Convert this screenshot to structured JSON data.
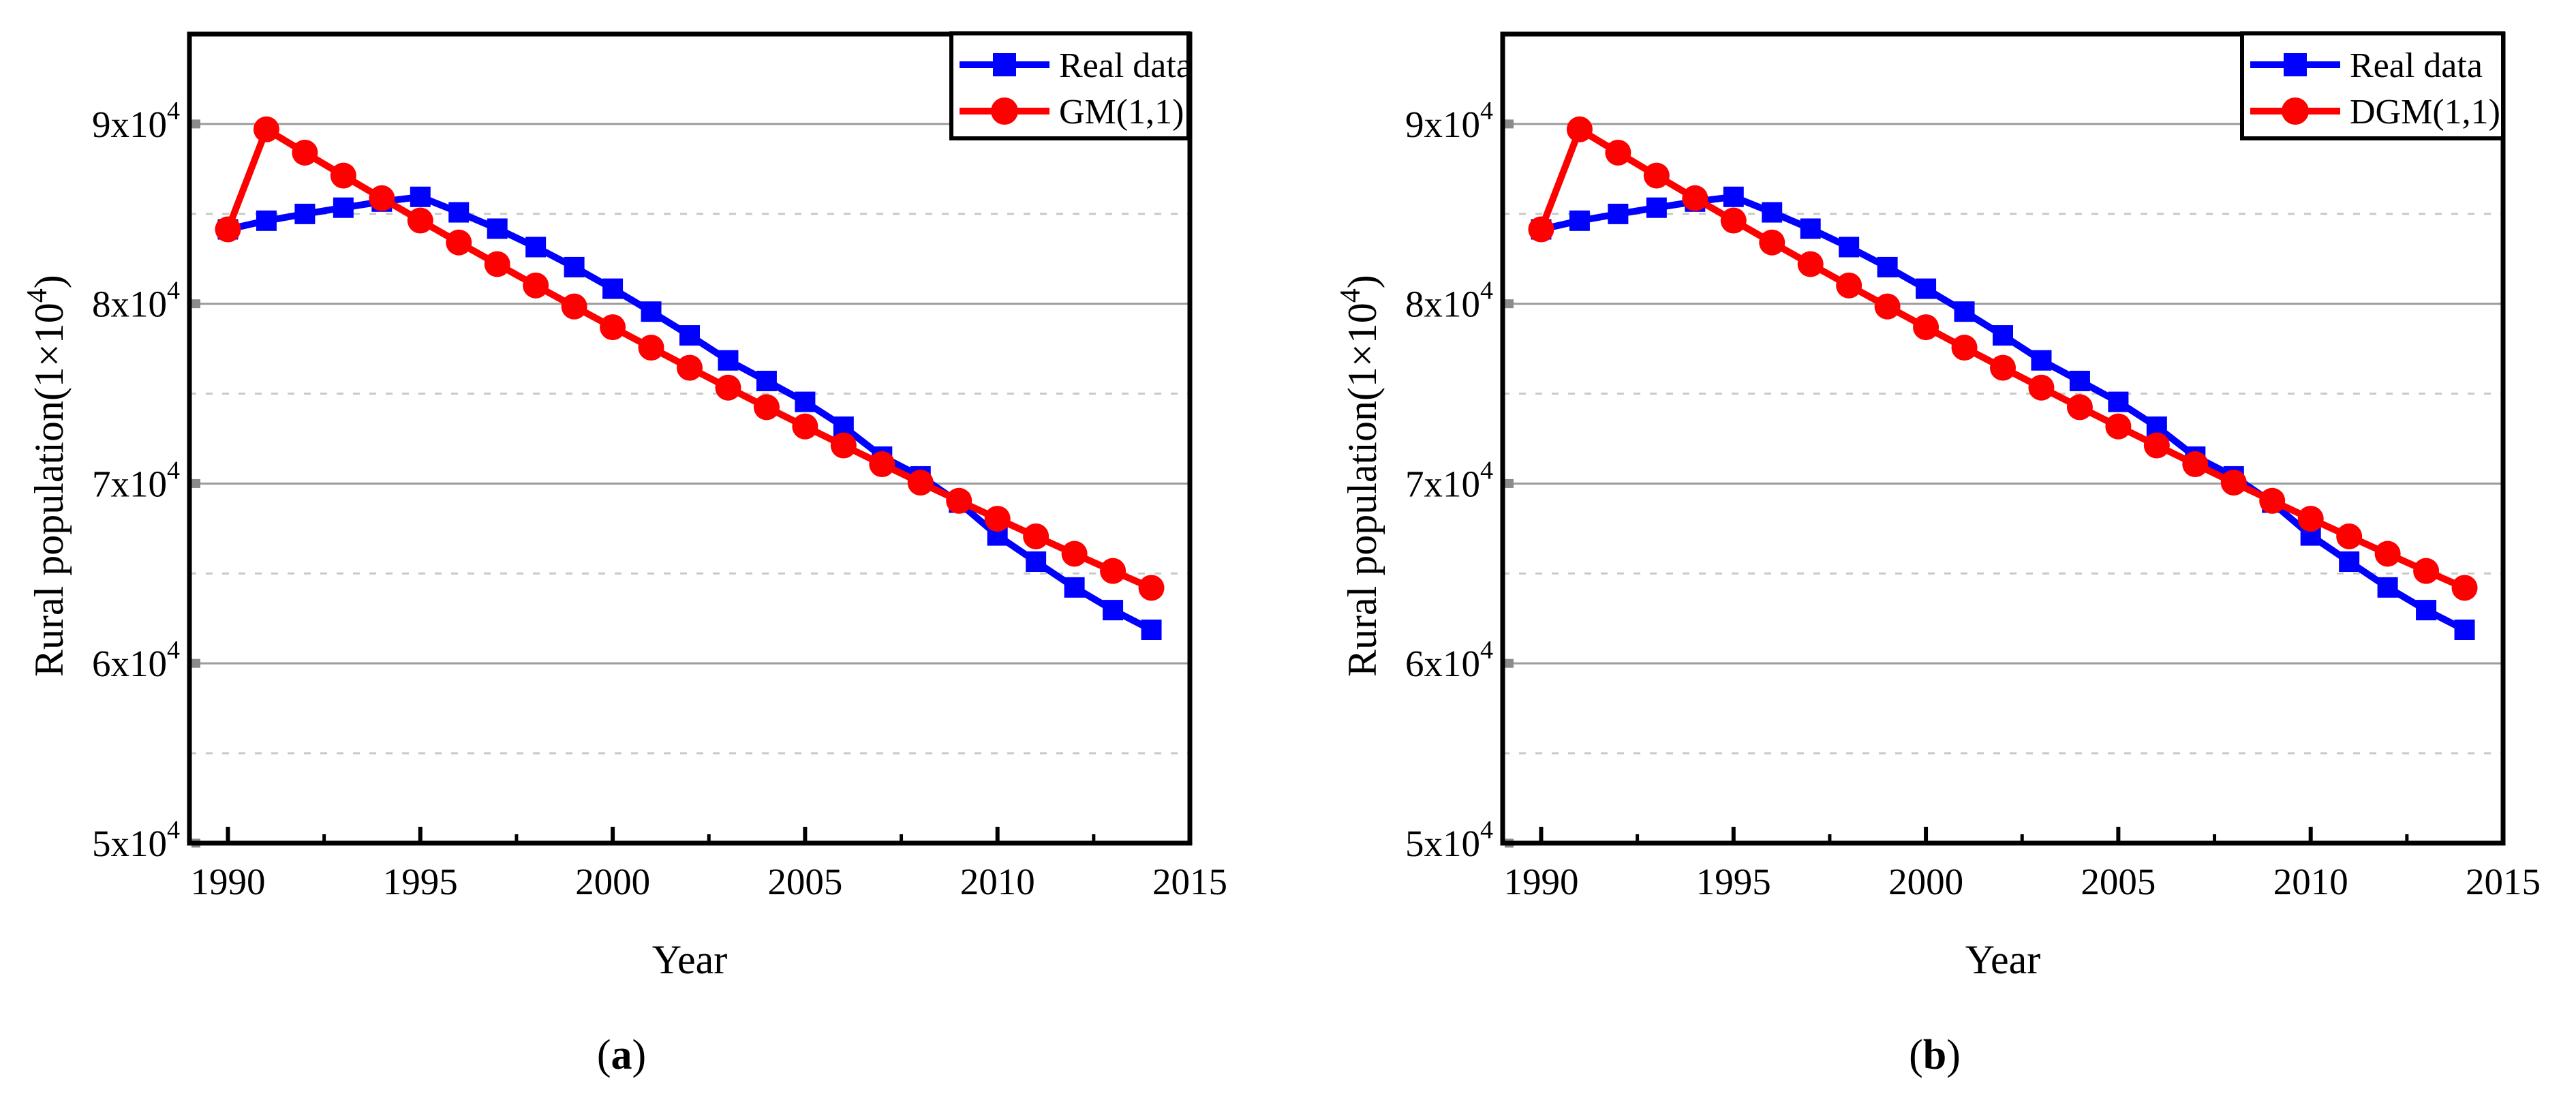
{
  "figure": {
    "xlabel": "Year",
    "ylabel": {
      "main": "Rural population(1×10",
      "sup": "4",
      "close": ")"
    },
    "captions": {
      "open": "(",
      "a": "a",
      "b": "b",
      "close": ")"
    }
  },
  "style": {
    "background": "#ffffff",
    "blue": "#0000fe",
    "red": "#fe0000",
    "frame": "#000000",
    "major_grid": "#9c9c9c",
    "minor_grid": "#c9c9c9",
    "grid_cap": "#8b8b8b",
    "tick": "#000000"
  },
  "axes": {
    "x": {
      "min": 1989,
      "max": 2015,
      "major_ticks": [
        1990,
        1995,
        2000,
        2005,
        2010,
        2015
      ],
      "minor_ticks": [
        1992.5,
        1997.5,
        2002.5,
        2007.5,
        2012.5
      ]
    },
    "y": {
      "min": 50000,
      "max": 95000,
      "major_gridlines": [
        90000,
        80000,
        70000,
        60000
      ],
      "minor_gridlines": [
        85000,
        75000,
        65000,
        55000
      ],
      "grid_cap_values": [
        90000,
        80000,
        70000,
        60000,
        50000
      ],
      "tick_labels": [
        {
          "value": 90000,
          "main": "9x10",
          "sup": "4"
        },
        {
          "value": 80000,
          "main": "8x10",
          "sup": "4"
        },
        {
          "value": 70000,
          "main": "7x10",
          "sup": "4"
        },
        {
          "value": 60000,
          "main": "6x10",
          "sup": "4"
        },
        {
          "value": 50000,
          "main": "5x10",
          "sup": "4"
        }
      ]
    }
  },
  "chart_data": [
    {
      "type": "line",
      "panel": "a",
      "title": "",
      "xlabel": "Year",
      "ylabel": "Rural population(1×10⁴)",
      "xlim": [
        1989,
        2015
      ],
      "ylim": [
        50000,
        95000
      ],
      "grid": "horizontal",
      "legend_position": "top-right",
      "x": [
        1990,
        1991,
        1992,
        1993,
        1994,
        1995,
        1996,
        1997,
        1998,
        1999,
        2000,
        2001,
        2002,
        2003,
        2004,
        2005,
        2006,
        2007,
        2008,
        2009,
        2010,
        2011,
        2012,
        2013,
        2014
      ],
      "series": [
        {
          "name": "Real data",
          "marker": "square",
          "color_key": "blue",
          "values": [
            84138,
            84620,
            84996,
            85344,
            85681,
            85947,
            85085,
            84177,
            83153,
            82038,
            80837,
            79563,
            78241,
            76851,
            75705,
            74544,
            73160,
            71496,
            70399,
            68938,
            67113,
            65656,
            64222,
            62961,
            61866
          ]
        },
        {
          "name": "GM(1,1)",
          "marker": "circle",
          "color_key": "red",
          "values": [
            84138,
            89700,
            88405,
            87129,
            85871,
            84631,
            83409,
            82205,
            81018,
            79848,
            78695,
            77559,
            76439,
            75335,
            74248,
            73176,
            72119,
            71078,
            70052,
            69040,
            68043,
            67061,
            66093,
            65139,
            64198
          ]
        }
      ]
    },
    {
      "type": "line",
      "panel": "b",
      "title": "",
      "xlabel": "Year",
      "ylabel": "Rural population(1×10⁴)",
      "xlim": [
        1989,
        2015
      ],
      "ylim": [
        50000,
        95000
      ],
      "grid": "horizontal",
      "legend_position": "top-right",
      "x": [
        1990,
        1991,
        1992,
        1993,
        1994,
        1995,
        1996,
        1997,
        1998,
        1999,
        2000,
        2001,
        2002,
        2003,
        2004,
        2005,
        2006,
        2007,
        2008,
        2009,
        2010,
        2011,
        2012,
        2013,
        2014
      ],
      "series": [
        {
          "name": "Real data",
          "marker": "square",
          "color_key": "blue",
          "values": [
            84138,
            84620,
            84996,
            85344,
            85681,
            85947,
            85085,
            84177,
            83153,
            82038,
            80837,
            79563,
            78241,
            76851,
            75705,
            74544,
            73160,
            71496,
            70399,
            68938,
            67113,
            65656,
            64222,
            62961,
            61866
          ]
        },
        {
          "name": "DGM(1,1)",
          "marker": "circle",
          "color_key": "red",
          "values": [
            84138,
            89700,
            88405,
            87129,
            85871,
            84631,
            83409,
            82205,
            81018,
            79848,
            78695,
            77559,
            76439,
            75335,
            74248,
            73176,
            72119,
            71078,
            70052,
            69040,
            68043,
            67061,
            66093,
            65139,
            64198
          ]
        }
      ]
    }
  ]
}
